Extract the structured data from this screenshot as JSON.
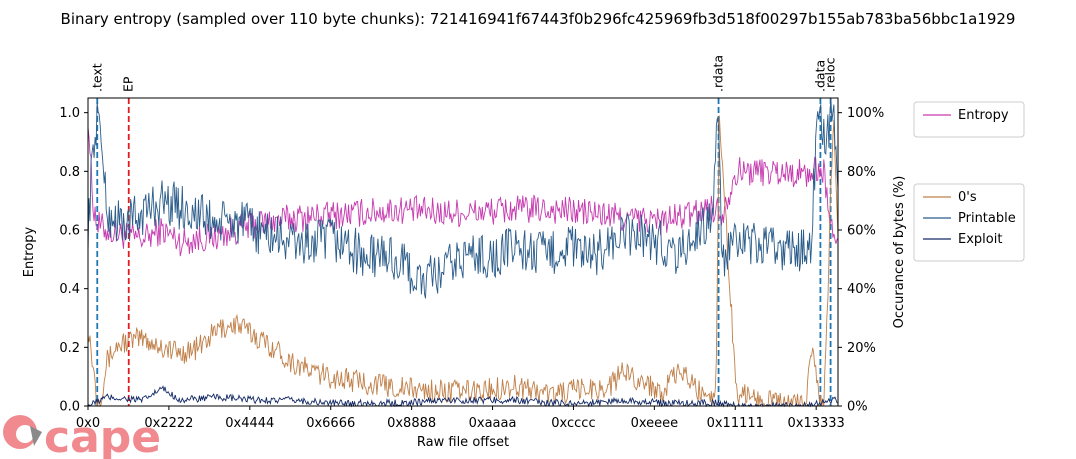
{
  "chart_data": {
    "type": "line",
    "title": "Binary entropy (sampled over 110 byte chunks): 721416941f67443f0b296fc425969fb3d518f00297b155ab783ba56bbc1a1929",
    "xlabel": "Raw file offset",
    "ylabel": "Entropy",
    "y2label": "Occurance of bytes (%)",
    "xlim": [
      0,
      81000
    ],
    "ylim": [
      0,
      1.05
    ],
    "y2lim": [
      0,
      1.05
    ],
    "x_ticks": [
      {
        "value": 0,
        "label": "0x0"
      },
      {
        "value": 8738,
        "label": "0x2222"
      },
      {
        "value": 17476,
        "label": "0x4444"
      },
      {
        "value": 26214,
        "label": "0x6666"
      },
      {
        "value": 34952,
        "label": "0x8888"
      },
      {
        "value": 43690,
        "label": "0xaaaa"
      },
      {
        "value": 52428,
        "label": "0xcccc"
      },
      {
        "value": 61166,
        "label": "0xeeee"
      },
      {
        "value": 69905,
        "label": "0x11111"
      },
      {
        "value": 78643,
        "label": "0x13333"
      }
    ],
    "y_ticks": [
      {
        "value": 0.0,
        "label": "0.0"
      },
      {
        "value": 0.2,
        "label": "0.2"
      },
      {
        "value": 0.4,
        "label": "0.4"
      },
      {
        "value": 0.6,
        "label": "0.6"
      },
      {
        "value": 0.8,
        "label": "0.8"
      },
      {
        "value": 1.0,
        "label": "1.0"
      }
    ],
    "y2_ticks": [
      {
        "value": 0.0,
        "label": "0%"
      },
      {
        "value": 0.2,
        "label": "20%"
      },
      {
        "value": 0.4,
        "label": "40%"
      },
      {
        "value": 0.6,
        "label": "60%"
      },
      {
        "value": 0.8,
        "label": "80%"
      },
      {
        "value": 1.0,
        "label": "100%"
      }
    ],
    "sections": [
      {
        "name": ".text",
        "offset": 1000,
        "color": "#1f77b4"
      },
      {
        "name": "EP",
        "offset": 4400,
        "color": "#e41a1c"
      },
      {
        "name": ".rdata",
        "offset": 68100,
        "color": "#1f77b4"
      },
      {
        "name": ".data",
        "offset": 79100,
        "color": "#1f77b4"
      },
      {
        "name": ".reloc",
        "offset": 80200,
        "color": "#1f77b4"
      }
    ],
    "series": [
      {
        "name": "Entropy",
        "color": "#c63ab0",
        "x": [
          0,
          500,
          1000,
          2000,
          4000,
          6000,
          8000,
          10000,
          14000,
          18000,
          22000,
          26000,
          30000,
          34000,
          38000,
          42000,
          46000,
          50000,
          54000,
          58000,
          62000,
          66000,
          67000,
          68500,
          70000,
          74000,
          78000,
          78800,
          79500,
          80500,
          81000
        ],
        "values": [
          1.0,
          0.7,
          0.62,
          0.6,
          0.58,
          0.57,
          0.6,
          0.56,
          0.58,
          0.62,
          0.64,
          0.65,
          0.66,
          0.67,
          0.66,
          0.66,
          0.67,
          0.67,
          0.66,
          0.64,
          0.63,
          0.66,
          0.68,
          0.66,
          0.8,
          0.8,
          0.79,
          0.81,
          0.8,
          0.55,
          0.6
        ]
      },
      {
        "name": "0's",
        "color": "#c0804a",
        "x": [
          0,
          500,
          1000,
          1500,
          2000,
          3000,
          4000,
          6000,
          8000,
          10000,
          12000,
          14000,
          16000,
          18000,
          20000,
          22000,
          24000,
          26000,
          28000,
          30000,
          34000,
          38000,
          42000,
          46000,
          50000,
          54000,
          56000,
          58000,
          60000,
          62000,
          64000,
          66000,
          67000,
          67800,
          68200,
          70000,
          74000,
          77500,
          78200,
          79000,
          79500,
          80500,
          81000
        ],
        "values": [
          0.28,
          0.15,
          0.02,
          0.05,
          0.15,
          0.2,
          0.22,
          0.23,
          0.2,
          0.18,
          0.2,
          0.26,
          0.28,
          0.24,
          0.2,
          0.15,
          0.12,
          0.1,
          0.09,
          0.08,
          0.06,
          0.05,
          0.05,
          0.07,
          0.04,
          0.06,
          0.06,
          0.12,
          0.08,
          0.05,
          0.12,
          0.05,
          0.05,
          0.03,
          1.0,
          0.05,
          0.01,
          0.01,
          0.2,
          0.02,
          0.0,
          1.0,
          0.6
        ]
      },
      {
        "name": "Printable",
        "color": "#2b5c8a",
        "x": [
          0,
          500,
          1000,
          1500,
          2000,
          4000,
          6000,
          8000,
          10000,
          12000,
          14000,
          16000,
          18000,
          20000,
          22000,
          24000,
          26000,
          28000,
          30000,
          32000,
          34000,
          36000,
          38000,
          40000,
          42000,
          44000,
          46000,
          48000,
          50000,
          52000,
          54000,
          56000,
          58000,
          60000,
          62000,
          64000,
          66000,
          67000,
          67500,
          68000,
          68500,
          70000,
          74000,
          78000,
          78800,
          79500,
          80500,
          81000
        ],
        "values": [
          0.6,
          0.85,
          1.0,
          0.9,
          0.65,
          0.62,
          0.66,
          0.7,
          0.68,
          0.65,
          0.62,
          0.63,
          0.6,
          0.58,
          0.56,
          0.55,
          0.57,
          0.55,
          0.5,
          0.52,
          0.48,
          0.42,
          0.45,
          0.5,
          0.52,
          0.5,
          0.55,
          0.52,
          0.52,
          0.55,
          0.5,
          0.55,
          0.58,
          0.58,
          0.55,
          0.52,
          0.6,
          0.63,
          0.68,
          1.0,
          0.5,
          0.55,
          0.54,
          0.53,
          1.0,
          0.9,
          1.0,
          0.8
        ]
      },
      {
        "name": "Exploit",
        "color": "#142a66",
        "x": [
          0,
          2000,
          6000,
          8000,
          10000,
          14000,
          18000,
          22000,
          26000,
          30000,
          34000,
          38000,
          42000,
          46000,
          50000,
          54000,
          58000,
          62000,
          66000,
          68000,
          70000,
          74000,
          78000,
          79000,
          81000
        ],
        "values": [
          0.0,
          0.03,
          0.02,
          0.06,
          0.02,
          0.03,
          0.02,
          0.02,
          0.01,
          0.01,
          0.01,
          0.02,
          0.02,
          0.02,
          0.01,
          0.01,
          0.02,
          0.01,
          0.01,
          0.01,
          0.0,
          0.0,
          0.0,
          0.01,
          0.02
        ]
      }
    ],
    "legend_top": [
      "Entropy"
    ],
    "legend_bottom": [
      "0's",
      "Printable",
      "Exploit"
    ]
  },
  "watermark": {
    "text": "cape",
    "color": "#f08a8f"
  }
}
